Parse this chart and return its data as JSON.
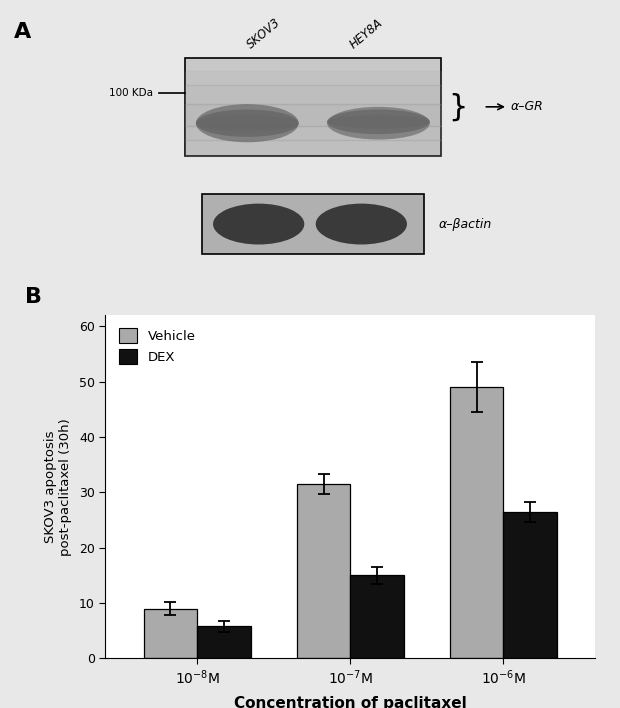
{
  "panel_A_label": "A",
  "panel_B_label": "B",
  "wb_label_100kda": "100 KDa",
  "wb_label_gr": "α–GR",
  "wb_label_bactin": "α–βactin",
  "wb_sample1": "SKOV3",
  "wb_sample2": "HEY8A",
  "vehicle_values": [
    9.0,
    31.5,
    49.0
  ],
  "dex_values": [
    5.8,
    15.0,
    26.5
  ],
  "vehicle_errors": [
    1.2,
    1.8,
    4.5
  ],
  "dex_errors": [
    1.0,
    1.5,
    1.8
  ],
  "vehicle_color": "#aaaaaa",
  "dex_color": "#111111",
  "ylabel": "SKOV3 apoptosis\npost-paclitaxel (30h)",
  "xlabel": "Concentration of paclitaxel",
  "ylim": [
    0,
    62
  ],
  "yticks": [
    0,
    10,
    20,
    30,
    40,
    50,
    60
  ],
  "legend_vehicle": "Vehicle",
  "legend_dex": "DEX",
  "background_color": "#e8e8e8",
  "panel_bg": "#ffffff",
  "blot1_bg": "#c8c8c8",
  "blot2_bg": "#b0b0b0",
  "band_dark": "#2a2a2a",
  "band_mid": "#666666",
  "band_light": "#888888"
}
